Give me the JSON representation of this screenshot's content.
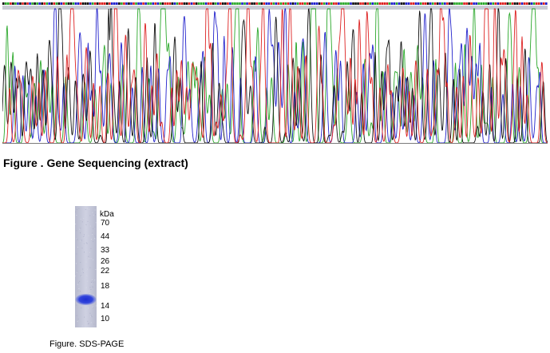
{
  "sequencing": {
    "title": "Figure . Gene Sequencing (extract)",
    "base_colors": {
      "A": "#2ba82b",
      "C": "#2222cc",
      "G": "#111111",
      "T": "#dd2222"
    },
    "base_order": "GAATGACGTGTCAGACGTACGTAGCTAGGACCTGGGCATGTTTGTCCCGATCGCTACCTCAACTCAGTTTGCATTGGTCTGAAACTTGACTGGTCAAAACACTGGTAGTCCTACTATATCGCATTATGCCCGTACTATTCAAAACGGGTTGTACAATTTTACCACGGCCTTCCATTGCATGCACTGGAAAATTGTCCAAAAGCATCTTTGATGGTCTTGCATTCTC"
  },
  "gel": {
    "unit_label": "kDa",
    "markers": [
      {
        "label": "70",
        "kda": 70
      },
      {
        "label": "44",
        "kda": 44
      },
      {
        "label": "33",
        "kda": 33
      },
      {
        "label": "26",
        "kda": 26
      },
      {
        "label": "22",
        "kda": 22
      },
      {
        "label": "18",
        "kda": 18
      },
      {
        "label": "14",
        "kda": 14
      },
      {
        "label": "10",
        "kda": 10
      }
    ],
    "band_kda": 15,
    "band_color": "#2a3fd6",
    "lane_color": "#c6c8dc",
    "caption": "Figure. SDS-PAGE"
  }
}
